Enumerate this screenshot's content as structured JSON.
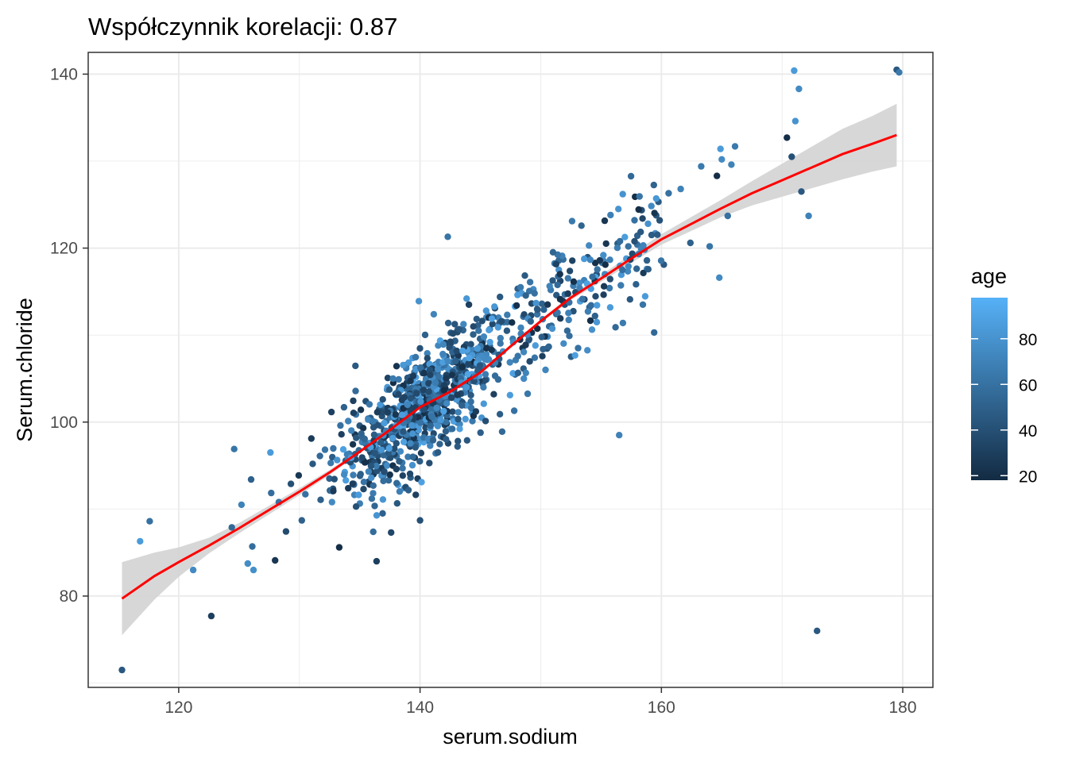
{
  "chart_data": {
    "type": "scatter",
    "title": "Współczynnik korelacji:  0.87",
    "xlabel": "serum.sodium",
    "ylabel": "Serum.chloride",
    "xlim": [
      112.5,
      182.5
    ],
    "ylim": [
      69.5,
      142.5
    ],
    "x_ticks": [
      120,
      140,
      160,
      180
    ],
    "x_tick_labels": [
      "120",
      "140",
      "160",
      "180"
    ],
    "y_ticks": [
      80,
      100,
      120,
      140
    ],
    "y_tick_labels": [
      "80",
      "100",
      "120",
      "140"
    ],
    "grid": true,
    "colors": {
      "low": "#132B43",
      "high": "#56B1F7",
      "smooth_line": "#FF0000",
      "ribbon": "#D3D3D3",
      "grid": "#EBEBEB",
      "panel_border": "#333333"
    },
    "legend": {
      "title": "age",
      "placement": "right",
      "range": [
        18,
        98
      ],
      "ticks": [
        20,
        40,
        60,
        80
      ],
      "tick_labels": [
        "20",
        "40",
        "60",
        "80"
      ]
    },
    "smooth": {
      "x": [
        115.3,
        118,
        120,
        122.5,
        125,
        127.5,
        130,
        132.5,
        135,
        137.5,
        140,
        142.5,
        145,
        147.5,
        150,
        152.5,
        155,
        157.5,
        160,
        162.5,
        165,
        167.5,
        170,
        172.5,
        175,
        177.5,
        179.5
      ],
      "y": [
        79.7,
        82.3,
        83.9,
        85.8,
        87.8,
        89.9,
        92.0,
        94.2,
        96.6,
        99.1,
        101.7,
        103.5,
        105.7,
        108.7,
        111.6,
        114.3,
        116.5,
        118.8,
        121.0,
        122.8,
        124.6,
        126.3,
        127.8,
        129.3,
        130.8,
        132.0,
        133.0
      ],
      "lower": [
        75.5,
        79.6,
        82.2,
        84.9,
        87.2,
        89.4,
        91.6,
        93.9,
        96.4,
        99.0,
        101.6,
        103.4,
        105.6,
        108.5,
        111.4,
        114.0,
        116.1,
        118.3,
        120.4,
        122.0,
        123.6,
        124.9,
        125.9,
        126.9,
        127.9,
        128.8,
        129.4
      ],
      "upper": [
        83.9,
        85.0,
        85.6,
        86.7,
        88.4,
        90.4,
        92.4,
        94.5,
        96.8,
        99.2,
        101.8,
        103.6,
        105.8,
        108.9,
        111.8,
        114.6,
        116.9,
        119.3,
        121.6,
        123.6,
        125.6,
        127.7,
        129.7,
        131.7,
        133.7,
        135.2,
        136.6
      ]
    },
    "points": [
      [
        115.3,
        71.5,
        45
      ],
      [
        116.8,
        86.3,
        85
      ],
      [
        117.6,
        88.6,
        60
      ],
      [
        121.2,
        83.0,
        75
      ],
      [
        122.7,
        77.7,
        30
      ],
      [
        124.6,
        96.9,
        62
      ],
      [
        124.4,
        87.9,
        55
      ],
      [
        125.2,
        90.5,
        70
      ],
      [
        126.0,
        93.4,
        50
      ],
      [
        126.1,
        85.7,
        58
      ],
      [
        126.2,
        83.0,
        78
      ],
      [
        127.6,
        96.5,
        85
      ],
      [
        128.3,
        90.8,
        60
      ],
      [
        129.3,
        92.9,
        40
      ],
      [
        130.2,
        88.7,
        50
      ],
      [
        130.5,
        91.7,
        60
      ],
      [
        131.1,
        95.2,
        45
      ],
      [
        131.7,
        96.1,
        55
      ],
      [
        132.6,
        95.3,
        65
      ],
      [
        132.7,
        90.8,
        75
      ],
      [
        133.3,
        85.6,
        20
      ],
      [
        133.4,
        99.6,
        60
      ],
      [
        133.7,
        101.7,
        50
      ],
      [
        134.5,
        92.9,
        55
      ],
      [
        135.2,
        97.7,
        70
      ],
      [
        135.5,
        102.4,
        40
      ],
      [
        136.0,
        91.2,
        60
      ],
      [
        136.6,
        96.7,
        85
      ],
      [
        136.9,
        89.5,
        50
      ],
      [
        136.4,
        84.0,
        30
      ],
      [
        137.4,
        93.3,
        55
      ],
      [
        137.6,
        87.3,
        35
      ],
      [
        138.1,
        98.8,
        60
      ],
      [
        138.3,
        104.0,
        45
      ],
      [
        138.7,
        92.4,
        75
      ],
      [
        139.0,
        96.0,
        65
      ],
      [
        139.2,
        105.2,
        50
      ],
      [
        139.5,
        100.3,
        60
      ],
      [
        139.8,
        93.5,
        30
      ],
      [
        140.0,
        88.7,
        40
      ],
      [
        139.9,
        113.9,
        80
      ],
      [
        140.6,
        107.9,
        70
      ],
      [
        141.1,
        101.6,
        55
      ],
      [
        141.3,
        96.4,
        65
      ],
      [
        141.9,
        104.6,
        40
      ],
      [
        142.3,
        121.3,
        62
      ],
      [
        142.5,
        99.2,
        75
      ],
      [
        143.1,
        110.6,
        55
      ],
      [
        143.4,
        102.4,
        60
      ],
      [
        143.9,
        97.9,
        45
      ],
      [
        144.2,
        106.6,
        70
      ],
      [
        144.8,
        111.1,
        50
      ],
      [
        145.1,
        100.5,
        80
      ],
      [
        145.5,
        104.9,
        60
      ],
      [
        146.1,
        108.1,
        65
      ],
      [
        146.8,
        98.9,
        55
      ],
      [
        146.5,
        112.0,
        70
      ],
      [
        147.2,
        110.5,
        45
      ],
      [
        147.8,
        101.3,
        60
      ],
      [
        148.6,
        105.0,
        75
      ],
      [
        149.0,
        109.4,
        55
      ],
      [
        149.5,
        107.4,
        62
      ],
      [
        150.1,
        113.6,
        50
      ],
      [
        150.4,
        106.0,
        72
      ],
      [
        150.7,
        111.0,
        58
      ],
      [
        151.3,
        114.6,
        45
      ],
      [
        151.5,
        117.5,
        80
      ],
      [
        152.2,
        110.5,
        55
      ],
      [
        152.6,
        123.1,
        65
      ],
      [
        153.1,
        108.5,
        60
      ],
      [
        153.6,
        116.3,
        70
      ],
      [
        154.0,
        120.3,
        75
      ],
      [
        154.5,
        112.2,
        50
      ],
      [
        155.1,
        118.3,
        60
      ],
      [
        155.7,
        115.4,
        65
      ],
      [
        156.2,
        110.9,
        55
      ],
      [
        156.5,
        98.5,
        70
      ],
      [
        156.8,
        126.2,
        80
      ],
      [
        157.4,
        114.1,
        45
      ],
      [
        158.0,
        120.4,
        60
      ],
      [
        158.8,
        117.6,
        70
      ],
      [
        159.4,
        110.3,
        55
      ],
      [
        160.2,
        118.1,
        45
      ],
      [
        160.6,
        126.3,
        60
      ],
      [
        161.6,
        126.8,
        70
      ],
      [
        162.4,
        120.6,
        50
      ],
      [
        163.3,
        129.4,
        65
      ],
      [
        164.0,
        120.2,
        62
      ],
      [
        164.6,
        128.3,
        20
      ],
      [
        164.8,
        116.6,
        75
      ],
      [
        164.9,
        131.4,
        85
      ],
      [
        165.0,
        130.2,
        75
      ],
      [
        165.5,
        123.7,
        60
      ],
      [
        165.8,
        129.6,
        70
      ],
      [
        166.1,
        131.7,
        65
      ],
      [
        170.4,
        132.7,
        20
      ],
      [
        170.8,
        130.5,
        40
      ],
      [
        171.0,
        140.4,
        85
      ],
      [
        171.1,
        134.6,
        80
      ],
      [
        171.4,
        138.3,
        75
      ],
      [
        171.6,
        126.5,
        45
      ],
      [
        172.2,
        123.7,
        70
      ],
      [
        172.9,
        76.0,
        45
      ],
      [
        179.5,
        140.5,
        45
      ],
      [
        179.7,
        140.2,
        65
      ]
    ]
  }
}
